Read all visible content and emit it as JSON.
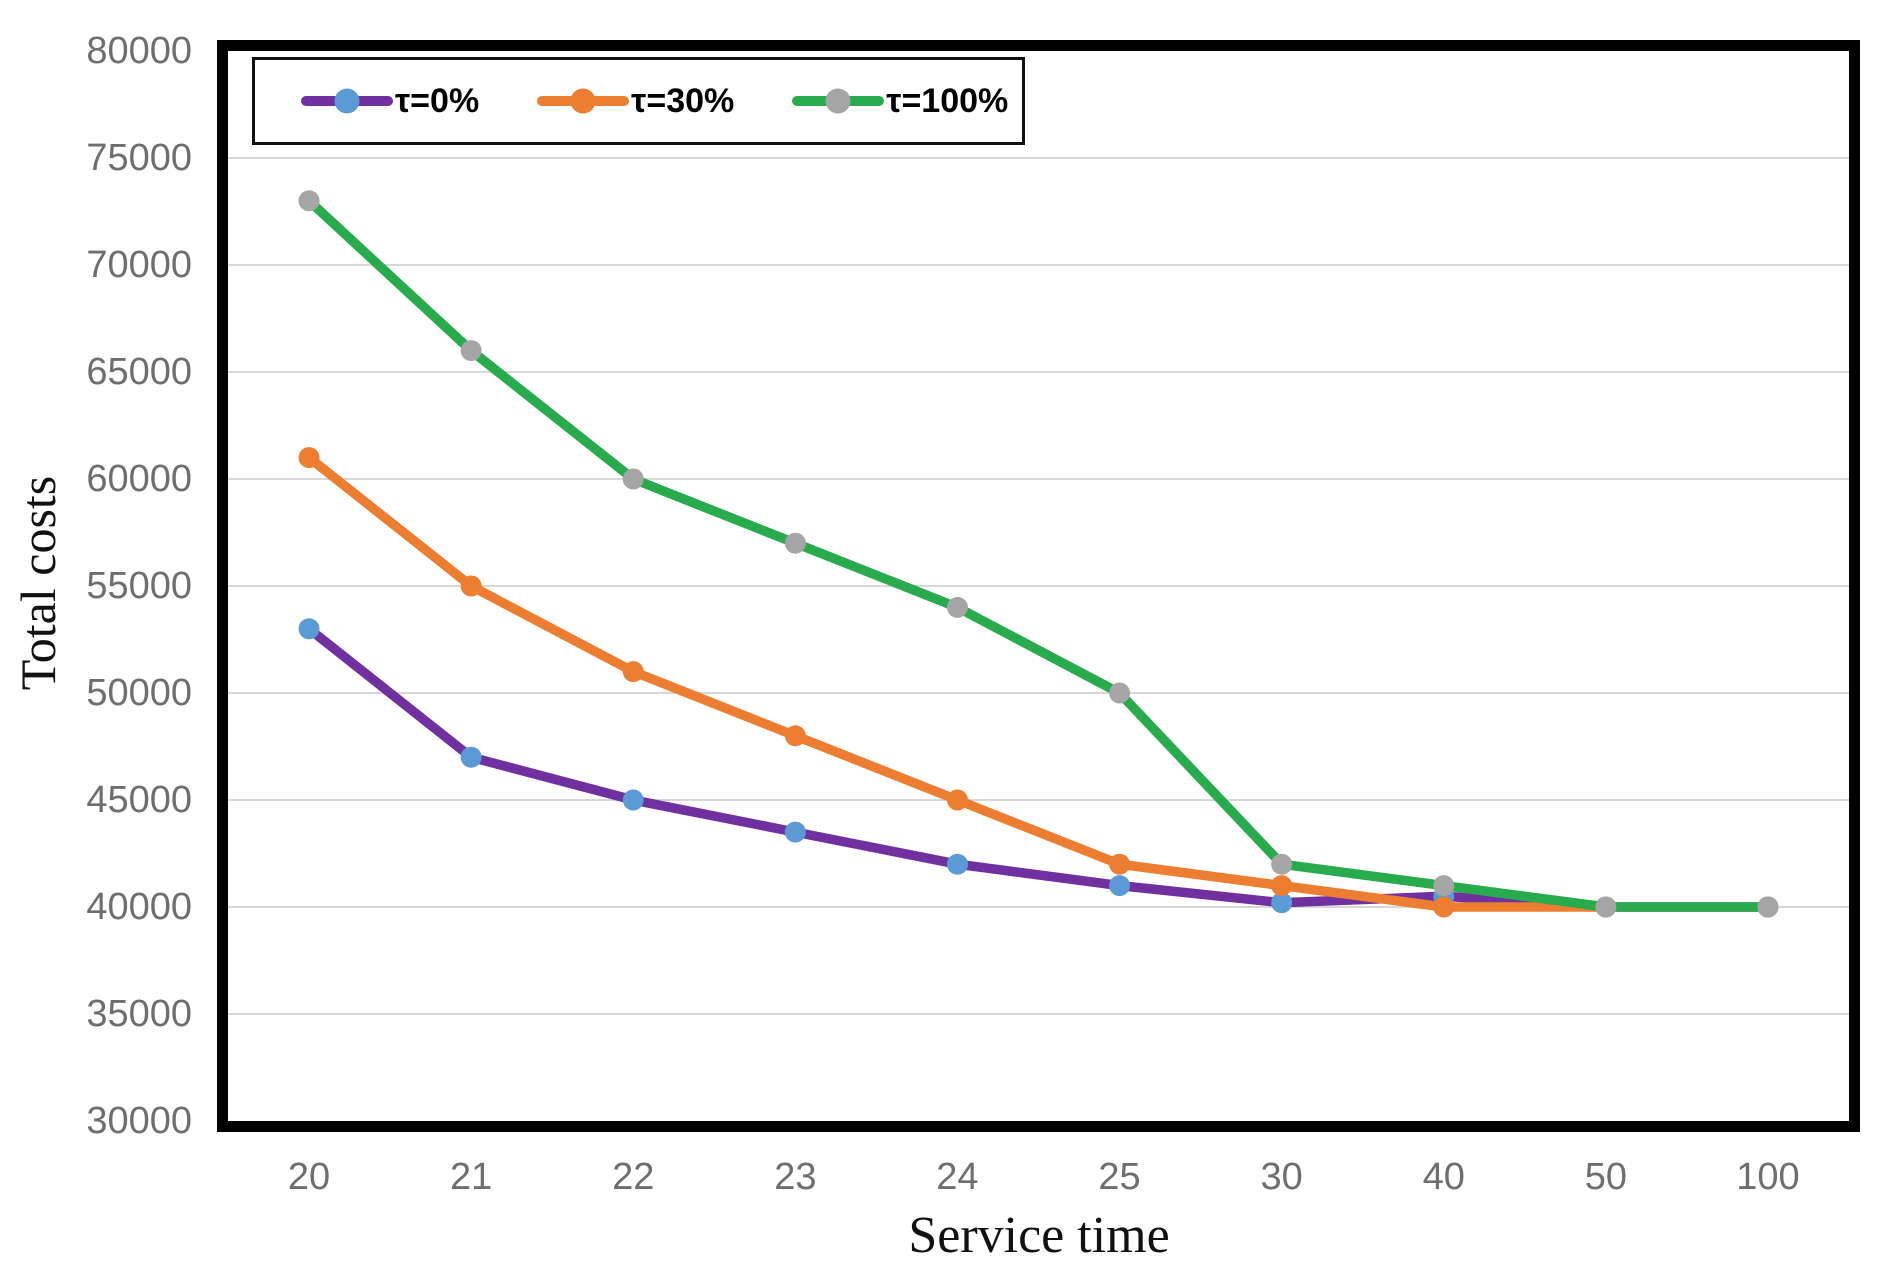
{
  "chart_data": {
    "type": "line",
    "title": "",
    "xlabel": "Service time",
    "ylabel": "Total costs",
    "categories": [
      "20",
      "21",
      "22",
      "23",
      "24",
      "25",
      "30",
      "40",
      "50",
      "100"
    ],
    "ylim": [
      30000,
      80000
    ],
    "yticks": [
      80000,
      75000,
      70000,
      65000,
      60000,
      55000,
      50000,
      45000,
      40000,
      35000,
      30000
    ],
    "grid": true,
    "gridline_color": "#D8D8D8",
    "tick_label_color": "#6e6e6e",
    "legend_position": "top-left",
    "series": [
      {
        "name": "τ=0%",
        "line_color": "#7030A0",
        "marker_color": "#5B9BD5",
        "values": [
          53000,
          47000,
          45000,
          43500,
          42000,
          41000,
          40200,
          40500,
          40000,
          40000
        ]
      },
      {
        "name": "τ=30%",
        "line_color": "#ED7D31",
        "marker_color": "#ED7D31",
        "values": [
          61000,
          55000,
          51000,
          48000,
          45000,
          42000,
          41000,
          40000,
          40000,
          40000
        ]
      },
      {
        "name": "τ=100%",
        "line_color": "#28AB4D",
        "marker_color": "#A5A5A5",
        "values": [
          73000,
          66000,
          60000,
          57000,
          54000,
          50000,
          42000,
          41000,
          40000,
          40000
        ]
      }
    ]
  }
}
